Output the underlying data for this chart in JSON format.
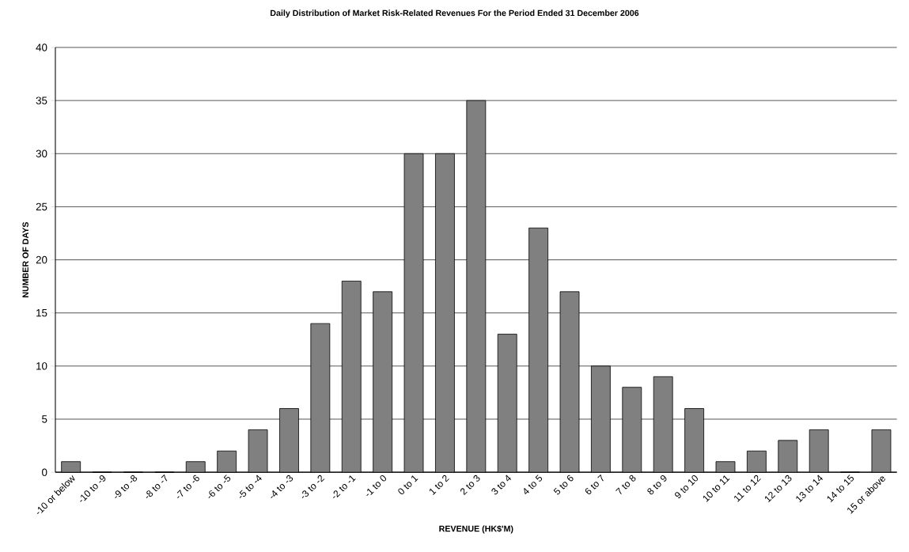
{
  "chart_data": {
    "type": "bar",
    "title": "Daily Distribution of Market Risk-Related Revenues For the Period Ended 31 December 2006",
    "xlabel": "REVENUE (HK$'M)",
    "ylabel": "NUMBER OF DAYS",
    "categories": [
      "-10 or below",
      "-10 to -9",
      "-9 to -8",
      "-8 to -7",
      "-7 to -6",
      "-6 to -5",
      "-5 to -4",
      "-4 to -3",
      "-3 to -2",
      "-2 to -1",
      "-1 to 0",
      "0 to 1",
      "1 to 2",
      "2 to 3",
      "3 to 4",
      "4 to 5",
      "5 to 6",
      "6 to 7",
      "7 to 8",
      "8 to 9",
      "9 to 10",
      "10 to 11",
      "11 to 12",
      "12 to 13",
      "13 to 14",
      "14 to 15",
      "15 or above"
    ],
    "values": [
      1,
      0,
      0,
      0,
      1,
      2,
      4,
      6,
      14,
      18,
      17,
      30,
      30,
      35,
      13,
      23,
      17,
      10,
      8,
      9,
      6,
      1,
      2,
      3,
      4,
      0,
      4
    ],
    "color": "#808080",
    "ylim": [
      0,
      40
    ],
    "yticks": [
      0,
      5,
      10,
      15,
      20,
      25,
      30,
      35,
      40
    ],
    "grid": "y"
  }
}
